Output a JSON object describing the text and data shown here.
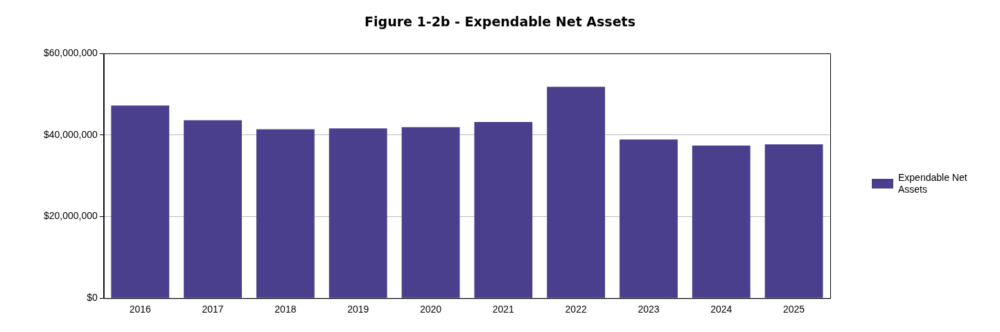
{
  "chart_data": {
    "type": "bar",
    "title": "Figure 1-2b - Expendable Net Assets",
    "categories": [
      "2016",
      "2017",
      "2018",
      "2019",
      "2020",
      "2021",
      "2022",
      "2023",
      "2024",
      "2025"
    ],
    "series": [
      {
        "name": "Expendable Net Assets",
        "color": "#4a3f8c",
        "values": [
          47200000,
          43600000,
          41400000,
          41600000,
          41900000,
          43200000,
          51800000,
          38900000,
          37400000,
          37700000
        ]
      }
    ],
    "ylim": [
      0,
      60000000
    ],
    "yticks": [
      {
        "value": 0,
        "label": "$0"
      },
      {
        "value": 20000000,
        "label": "$20,000,000"
      },
      {
        "value": 40000000,
        "label": "$40,000,000"
      },
      {
        "value": 60000000,
        "label": "$60,000,000"
      }
    ],
    "grid": "y",
    "legend": "right"
  }
}
